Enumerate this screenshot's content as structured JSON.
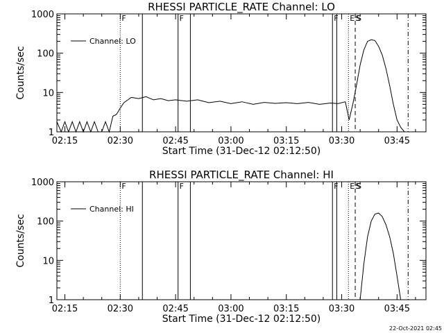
{
  "footer": {
    "timestamp": "22-Oct-2021 02:45"
  },
  "chart_data": [
    {
      "type": "line",
      "title": "RHESSI PARTICLE_RATE Channel: LO",
      "xlabel": "Start Time (31-Dec-12 02:12:50)",
      "ylabel": "Counts/sec",
      "y_scale": "log",
      "xlim": [
        "02:12:50",
        "03:52:50"
      ],
      "ylim": [
        1,
        1000
      ],
      "x_ticks": [
        "02:15",
        "02:30",
        "02:45",
        "03:00",
        "03:15",
        "03:30",
        "03:45"
      ],
      "y_ticks": [
        "1",
        "10",
        "100",
        "1000"
      ],
      "legend": {
        "position": "top-left",
        "entries": [
          "Channel: LO"
        ]
      },
      "series": [
        {
          "name": "Channel: LO",
          "x": [
            "02:12:50",
            "02:14:00",
            "02:15:00",
            "02:16:00",
            "02:17:00",
            "02:18:00",
            "02:19:00",
            "02:20:00",
            "02:21:00",
            "02:22:00",
            "02:23:00",
            "02:24:00",
            "02:25:00",
            "02:26:00",
            "02:27:00",
            "02:28:00",
            "02:29:00",
            "02:30:00",
            "02:31:00",
            "02:33:00",
            "02:35:00",
            "02:37:00",
            "02:39:00",
            "02:41:00",
            "02:43:00",
            "02:45:00",
            "02:48:00",
            "02:51:00",
            "02:54:00",
            "02:57:00",
            "03:00:00",
            "03:03:00",
            "03:06:00",
            "03:09:00",
            "03:12:00",
            "03:15:00",
            "03:18:00",
            "03:21:00",
            "03:24:00",
            "03:27:00",
            "03:29:00",
            "03:31:00",
            "03:32:00",
            "03:33:00",
            "03:34:00",
            "03:35:00",
            "03:36:00",
            "03:37:00",
            "03:38:00",
            "03:39:00",
            "03:40:00",
            "03:41:00",
            "03:42:00",
            "03:43:00",
            "03:44:00",
            "03:45:00",
            "03:46:00",
            "03:47:00"
          ],
          "y": [
            1.8,
            1.0,
            1.8,
            1.0,
            1.8,
            1.0,
            1.8,
            1.0,
            1.8,
            1.0,
            1.8,
            1.0,
            1.0,
            1.8,
            1.0,
            2.5,
            2.8,
            4.0,
            5.5,
            7.5,
            7.0,
            7.8,
            6.5,
            7.0,
            6.2,
            6.5,
            6.0,
            6.5,
            5.5,
            6.0,
            5.2,
            5.8,
            5.0,
            5.6,
            5.3,
            5.5,
            5.2,
            5.6,
            5.0,
            5.4,
            5.2,
            5.8,
            2.0,
            5.0,
            15,
            50,
            120,
            200,
            220,
            210,
            150,
            90,
            40,
            15,
            5,
            2,
            1.3,
            1.0
          ]
        }
      ],
      "vertical_markers": [
        {
          "time": "02:30:00",
          "style": "dotted",
          "flag": "F"
        },
        {
          "time": "02:36:00",
          "style": "solid"
        },
        {
          "time": "02:45:40",
          "style": "solid",
          "flag": "F"
        },
        {
          "time": "02:49:00",
          "style": "solid"
        },
        {
          "time": "03:27:30",
          "style": "solid",
          "flag": "F"
        },
        {
          "time": "03:28:40",
          "style": "solid"
        },
        {
          "time": "03:31:50",
          "style": "dotted"
        },
        {
          "time": "03:33:40",
          "style": "dashed",
          "flag": "S"
        },
        {
          "time": "03:48:00",
          "style": "dash-dot"
        }
      ],
      "corner_flags": [
        "E",
        "S"
      ]
    },
    {
      "type": "line",
      "title": "RHESSI PARTICLE_RATE Channel: HI",
      "xlabel": "Start Time (31-Dec-12 02:12:50)",
      "ylabel": "Counts/sec",
      "y_scale": "log",
      "xlim": [
        "02:12:50",
        "03:52:50"
      ],
      "ylim": [
        1,
        1000
      ],
      "x_ticks": [
        "02:15",
        "02:30",
        "02:45",
        "03:00",
        "03:15",
        "03:30",
        "03:45"
      ],
      "y_ticks": [
        "1",
        "10",
        "100",
        "1000"
      ],
      "legend": {
        "position": "top-left",
        "entries": [
          "Channel: HI"
        ]
      },
      "series": [
        {
          "name": "Channel: HI",
          "x": [
            "03:35:00",
            "03:36:00",
            "03:37:00",
            "03:38:00",
            "03:39:00",
            "03:40:00",
            "03:41:00",
            "03:42:00",
            "03:43:00",
            "03:44:00",
            "03:45:00",
            "03:46:00"
          ],
          "y": [
            1.0,
            8,
            40,
            100,
            150,
            160,
            130,
            80,
            40,
            15,
            4,
            1.0
          ]
        }
      ],
      "vertical_markers": [
        {
          "time": "02:30:00",
          "style": "dotted",
          "flag": "F"
        },
        {
          "time": "02:36:00",
          "style": "solid"
        },
        {
          "time": "02:45:40",
          "style": "solid",
          "flag": "F"
        },
        {
          "time": "02:49:00",
          "style": "solid"
        },
        {
          "time": "03:27:30",
          "style": "solid",
          "flag": "F"
        },
        {
          "time": "03:28:40",
          "style": "solid"
        },
        {
          "time": "03:31:50",
          "style": "dotted"
        },
        {
          "time": "03:33:40",
          "style": "dashed",
          "flag": "S"
        },
        {
          "time": "03:48:00",
          "style": "dash-dot"
        }
      ],
      "corner_flags": [
        "E",
        "S"
      ]
    }
  ]
}
